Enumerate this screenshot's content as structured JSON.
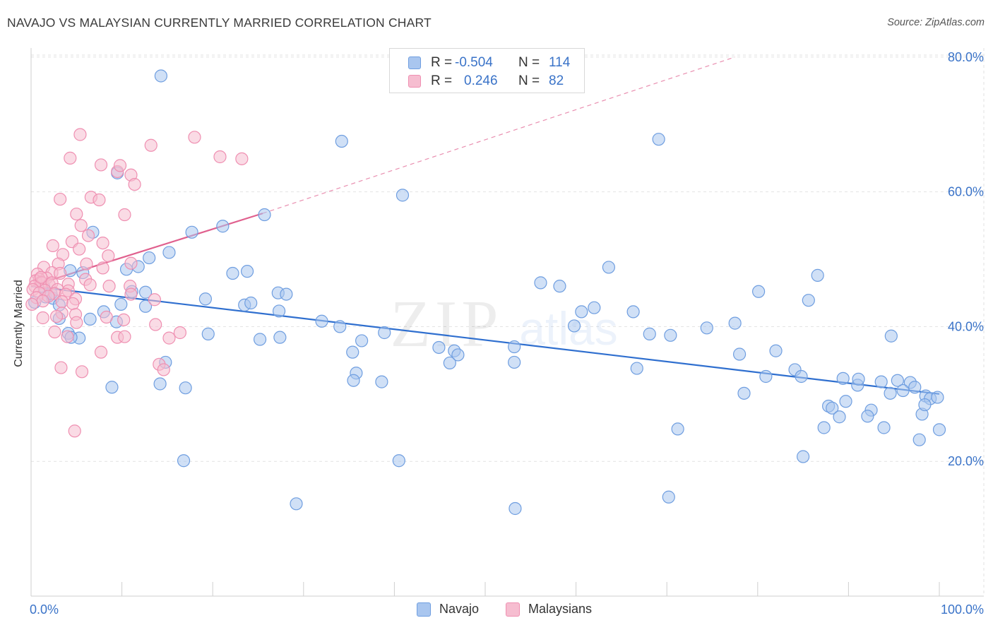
{
  "header": {
    "title": "NAVAJO VS MALAYSIAN CURRENTLY MARRIED CORRELATION CHART",
    "source": "Source: ZipAtlas.com"
  },
  "watermark": {
    "zip": "ZIP",
    "atlas": "atlas"
  },
  "legend": {
    "rows": [
      {
        "r_label": "R =",
        "r_value": "-0.504",
        "n_label": "N =",
        "n_value": "114"
      },
      {
        "r_label": "R =",
        "r_value": "0.246",
        "n_label": "N =",
        "n_value": "82"
      }
    ]
  },
  "bottom_legend": {
    "navajo": "Navajo",
    "malaysians": "Malaysians"
  },
  "colors": {
    "navajo_fill": "#a9c6ef",
    "navajo_stroke": "#6f9ee0",
    "navajo_line": "#2f6fcf",
    "malay_fill": "#f6bdd0",
    "malay_stroke": "#ef8fb1",
    "malay_line": "#e0608e",
    "axis_text": "#3a73c8",
    "grid": "#e2e2e2"
  },
  "chart_data": {
    "type": "scatter",
    "title": "NAVAJO VS MALAYSIAN CURRENTLY MARRIED CORRELATION CHART",
    "xlabel": "",
    "ylabel": "Currently Married",
    "xlim": [
      0,
      100
    ],
    "ylim": [
      0,
      82
    ],
    "x_ticks": [
      "0.0%",
      "100.0%"
    ],
    "y_ticks": [
      {
        "value": 20,
        "label": "20.0%"
      },
      {
        "value": 40,
        "label": "40.0%"
      },
      {
        "value": 60,
        "label": "60.0%"
      },
      {
        "value": 80,
        "label": "80.0%"
      }
    ],
    "legend_position": "top-center",
    "grid": true,
    "series": [
      {
        "name": "Navajo",
        "R": -0.504,
        "N": 114,
        "trend": {
          "x0": 0,
          "y0": 46.0,
          "x1": 100,
          "y1": 30.0
        },
        "points": [
          [
            14.3,
            77.2
          ],
          [
            34.2,
            67.5
          ],
          [
            69.1,
            67.8
          ],
          [
            9.5,
            62.8
          ],
          [
            40.9,
            59.5
          ],
          [
            25.7,
            56.6
          ],
          [
            21.1,
            54.9
          ],
          [
            6.8,
            54.0
          ],
          [
            17.7,
            54.0
          ],
          [
            15.2,
            51.0
          ],
          [
            13.0,
            50.2
          ],
          [
            11.8,
            48.9
          ],
          [
            10.5,
            48.5
          ],
          [
            4.3,
            48.3
          ],
          [
            5.7,
            48.0
          ],
          [
            22.2,
            47.9
          ],
          [
            23.8,
            48.2
          ],
          [
            63.6,
            48.8
          ],
          [
            86.6,
            47.6
          ],
          [
            56.1,
            46.5
          ],
          [
            58.2,
            46.0
          ],
          [
            27.2,
            45.0
          ],
          [
            28.1,
            44.8
          ],
          [
            12.6,
            45.1
          ],
          [
            11.1,
            45.2
          ],
          [
            19.2,
            44.1
          ],
          [
            1.6,
            44.4
          ],
          [
            2.4,
            44.2
          ],
          [
            8.0,
            42.2
          ],
          [
            9.9,
            43.3
          ],
          [
            12.6,
            43.0
          ],
          [
            23.5,
            43.2
          ],
          [
            24.2,
            43.5
          ],
          [
            27.3,
            42.3
          ],
          [
            62.0,
            42.8
          ],
          [
            60.6,
            42.2
          ],
          [
            66.3,
            42.2
          ],
          [
            80.1,
            45.2
          ],
          [
            85.6,
            43.9
          ],
          [
            3.1,
            43.2
          ],
          [
            3.1,
            41.2
          ],
          [
            6.5,
            41.1
          ],
          [
            9.4,
            40.7
          ],
          [
            32.0,
            40.8
          ],
          [
            34.0,
            40.0
          ],
          [
            59.8,
            40.1
          ],
          [
            74.4,
            39.8
          ],
          [
            77.5,
            40.5
          ],
          [
            94.7,
            38.6
          ],
          [
            19.5,
            38.9
          ],
          [
            25.2,
            38.1
          ],
          [
            27.4,
            38.4
          ],
          [
            36.4,
            37.9
          ],
          [
            38.9,
            39.1
          ],
          [
            68.1,
            38.9
          ],
          [
            70.4,
            38.7
          ],
          [
            4.1,
            39.0
          ],
          [
            5.3,
            38.3
          ],
          [
            4.4,
            38.4
          ],
          [
            53.2,
            37.0
          ],
          [
            35.4,
            36.2
          ],
          [
            44.9,
            36.9
          ],
          [
            46.6,
            36.4
          ],
          [
            47.0,
            35.8
          ],
          [
            78.0,
            35.9
          ],
          [
            82.0,
            36.4
          ],
          [
            14.8,
            34.7
          ],
          [
            46.1,
            34.6
          ],
          [
            53.2,
            34.7
          ],
          [
            66.7,
            33.8
          ],
          [
            84.1,
            33.6
          ],
          [
            35.8,
            33.1
          ],
          [
            35.5,
            32.0
          ],
          [
            38.6,
            31.8
          ],
          [
            14.2,
            31.5
          ],
          [
            17.0,
            30.9
          ],
          [
            8.9,
            31.0
          ],
          [
            80.9,
            32.6
          ],
          [
            84.8,
            32.6
          ],
          [
            89.4,
            32.3
          ],
          [
            91.0,
            31.3
          ],
          [
            91.1,
            32.2
          ],
          [
            93.6,
            31.8
          ],
          [
            95.4,
            32.0
          ],
          [
            96.8,
            31.7
          ],
          [
            97.3,
            31.0
          ],
          [
            94.6,
            30.1
          ],
          [
            96.0,
            30.5
          ],
          [
            78.5,
            30.1
          ],
          [
            89.7,
            28.9
          ],
          [
            87.8,
            28.2
          ],
          [
            88.2,
            27.9
          ],
          [
            92.5,
            27.6
          ],
          [
            98.5,
            29.7
          ],
          [
            99.0,
            29.3
          ],
          [
            99.8,
            29.5
          ],
          [
            98.1,
            27.0
          ],
          [
            98.4,
            28.4
          ],
          [
            89.0,
            26.6
          ],
          [
            92.1,
            26.7
          ],
          [
            87.3,
            25.0
          ],
          [
            93.9,
            25.0
          ],
          [
            71.2,
            24.8
          ],
          [
            100.0,
            24.7
          ],
          [
            97.8,
            23.2
          ],
          [
            85.0,
            20.7
          ],
          [
            16.8,
            20.1
          ],
          [
            40.5,
            20.1
          ],
          [
            70.2,
            14.7
          ],
          [
            29.2,
            13.7
          ],
          [
            53.3,
            13.0
          ],
          [
            0.4,
            43.6
          ],
          [
            1.4,
            45.9
          ],
          [
            2.2,
            44.9
          ]
        ]
      },
      {
        "name": "Malaysians",
        "R": 0.246,
        "N": 82,
        "trend": {
          "x0": 0,
          "y0": 46.0,
          "x1": 25.5,
          "y1": 56.8,
          "extended_to": {
            "x": 77.5,
            "y": 80.0
          }
        },
        "points": [
          [
            5.4,
            68.5
          ],
          [
            18.0,
            68.1
          ],
          [
            13.2,
            66.9
          ],
          [
            4.3,
            65.0
          ],
          [
            20.8,
            65.2
          ],
          [
            23.2,
            64.9
          ],
          [
            7.7,
            64.0
          ],
          [
            9.5,
            63.0
          ],
          [
            9.8,
            63.9
          ],
          [
            11.0,
            62.5
          ],
          [
            11.4,
            61.1
          ],
          [
            3.2,
            58.9
          ],
          [
            6.6,
            59.2
          ],
          [
            7.5,
            58.8
          ],
          [
            5.0,
            56.7
          ],
          [
            10.3,
            56.6
          ],
          [
            5.5,
            55.0
          ],
          [
            6.3,
            53.5
          ],
          [
            4.5,
            52.6
          ],
          [
            7.9,
            52.4
          ],
          [
            2.4,
            52.0
          ],
          [
            5.3,
            51.5
          ],
          [
            3.5,
            50.7
          ],
          [
            8.5,
            50.5
          ],
          [
            3.0,
            49.3
          ],
          [
            6.1,
            49.3
          ],
          [
            11.0,
            49.4
          ],
          [
            7.9,
            48.7
          ],
          [
            1.4,
            48.8
          ],
          [
            2.3,
            48.0
          ],
          [
            0.7,
            47.8
          ],
          [
            3.2,
            47.9
          ],
          [
            6.0,
            47.0
          ],
          [
            1.7,
            47.2
          ],
          [
            0.9,
            47.0
          ],
          [
            0.5,
            46.8
          ],
          [
            1.1,
            46.6
          ],
          [
            1.2,
            46.5
          ],
          [
            0.4,
            46.0
          ],
          [
            2.0,
            46.2
          ],
          [
            2.3,
            46.5
          ],
          [
            4.1,
            46.3
          ],
          [
            6.5,
            46.2
          ],
          [
            8.6,
            46.0
          ],
          [
            10.9,
            46.0
          ],
          [
            0.2,
            45.5
          ],
          [
            1.5,
            45.4
          ],
          [
            2.9,
            45.5
          ],
          [
            4.1,
            45.3
          ],
          [
            0.9,
            45.0
          ],
          [
            2.6,
            44.9
          ],
          [
            3.8,
            44.8
          ],
          [
            11.0,
            44.8
          ],
          [
            0.6,
            44.3
          ],
          [
            1.9,
            44.5
          ],
          [
            4.9,
            44.1
          ],
          [
            13.6,
            44.0
          ],
          [
            1.3,
            43.8
          ],
          [
            3.4,
            43.7
          ],
          [
            4.6,
            43.4
          ],
          [
            0.1,
            43.3
          ],
          [
            3.4,
            42.0
          ],
          [
            4.9,
            41.8
          ],
          [
            8.3,
            41.4
          ],
          [
            1.3,
            41.3
          ],
          [
            2.8,
            41.5
          ],
          [
            10.2,
            41.0
          ],
          [
            5.0,
            40.6
          ],
          [
            13.7,
            40.3
          ],
          [
            2.6,
            39.2
          ],
          [
            4.0,
            38.5
          ],
          [
            9.5,
            38.4
          ],
          [
            10.3,
            38.5
          ],
          [
            15.2,
            38.3
          ],
          [
            16.4,
            39.1
          ],
          [
            7.7,
            36.2
          ],
          [
            14.1,
            34.4
          ],
          [
            14.6,
            33.6
          ],
          [
            3.3,
            33.9
          ],
          [
            5.6,
            33.3
          ],
          [
            4.8,
            24.5
          ],
          [
            1.1,
            47.3
          ]
        ]
      }
    ]
  }
}
